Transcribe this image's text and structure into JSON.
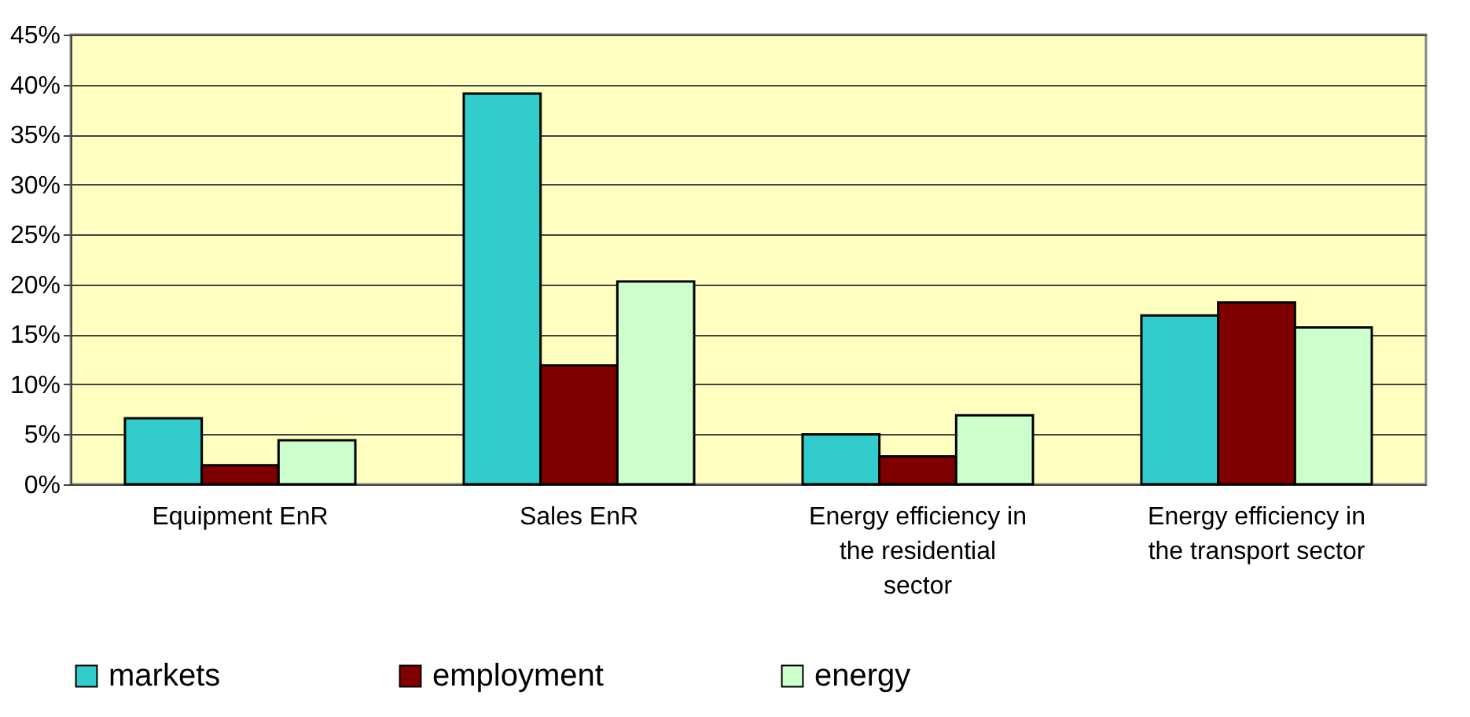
{
  "chart_data": {
    "type": "bar",
    "categories": [
      "Equipment EnR",
      "Sales EnR",
      "Energy efficiency in the residential sector",
      "Energy efficiency in the transport sector"
    ],
    "series": [
      {
        "name": "markets",
        "color": "#33cccc",
        "values": [
          6.6,
          39.1,
          5.0,
          16.9
        ]
      },
      {
        "name": "employment",
        "color": "#800000",
        "values": [
          1.9,
          11.9,
          2.8,
          18.2
        ]
      },
      {
        "name": "energy",
        "color": "#ccffcc",
        "values": [
          4.4,
          20.3,
          6.9,
          15.7
        ]
      }
    ],
    "ylim": [
      0,
      45
    ],
    "yticks": [
      {
        "value": 0,
        "label": "0%"
      },
      {
        "value": 5,
        "label": "5%"
      },
      {
        "value": 10,
        "label": "10%"
      },
      {
        "value": 15,
        "label": "15%"
      },
      {
        "value": 20,
        "label": "20%"
      },
      {
        "value": 25,
        "label": "25%"
      },
      {
        "value": 30,
        "label": "30%"
      },
      {
        "value": 35,
        "label": "35%"
      },
      {
        "value": 40,
        "label": "40%"
      },
      {
        "value": 45,
        "label": "45%"
      }
    ],
    "grid": "y",
    "legend": "bottom"
  }
}
